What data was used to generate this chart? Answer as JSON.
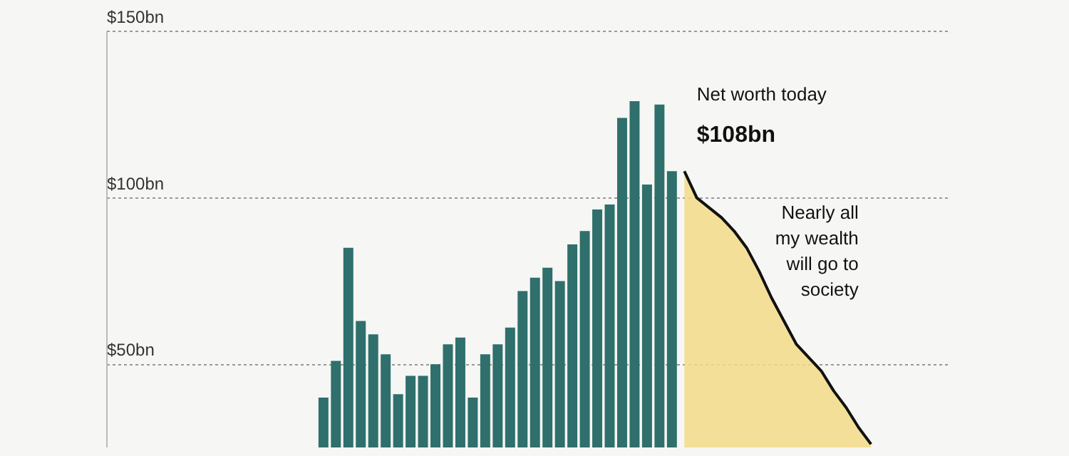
{
  "chart_data": {
    "type": "bar",
    "categories": [
      null,
      null,
      null,
      null,
      null,
      null,
      null,
      null,
      null,
      null,
      null,
      null,
      null,
      null,
      null,
      null,
      null,
      null,
      null,
      null,
      null,
      null,
      null,
      null,
      null,
      null,
      null,
      null,
      null,
      null,
      null,
      null,
      null,
      null,
      null,
      null,
      null,
      null,
      null,
      null,
      null,
      null,
      null,
      null,
      null,
      null,
      null,
      null,
      null,
      null,
      null,
      null,
      null,
      null,
      null,
      null,
      null,
      null,
      null,
      null,
      null,
      null,
      null,
      null,
      null,
      null,
      null,
      null
    ],
    "series": [
      {
        "color": "#2f6f6c",
        "values": [
          null,
          null,
          null,
          null,
          null,
          null,
          null,
          null,
          null,
          null,
          null,
          null,
          null,
          null,
          null,
          null,
          null,
          40,
          51,
          85,
          63,
          59,
          53,
          41,
          46.5,
          46.5,
          50,
          56,
          58,
          40,
          53,
          56,
          61,
          72,
          76,
          79,
          75,
          86,
          90,
          96.5,
          98,
          124,
          129,
          104,
          128,
          108,
          null,
          null,
          null,
          null,
          null,
          null,
          null,
          null,
          null,
          null,
          null,
          null,
          null,
          null,
          null,
          null,
          null,
          null,
          null,
          null,
          null,
          null
        ]
      },
      {
        "type": "area",
        "color": "#f2da86",
        "values": [
          null,
          null,
          null,
          null,
          null,
          null,
          null,
          null,
          null,
          null,
          null,
          null,
          null,
          null,
          null,
          null,
          null,
          null,
          null,
          null,
          null,
          null,
          null,
          null,
          null,
          null,
          null,
          null,
          null,
          null,
          null,
          null,
          null,
          null,
          null,
          null,
          null,
          null,
          null,
          null,
          null,
          null,
          null,
          null,
          null,
          null,
          108,
          100,
          97,
          94,
          90,
          85,
          78,
          70,
          63,
          56,
          52,
          48,
          42,
          37,
          31,
          26,
          null,
          null,
          null,
          null,
          null,
          null
        ]
      }
    ],
    "ylim": [
      25,
      150
    ],
    "yticks": [
      {
        "value": 50,
        "label": "$50bn"
      },
      {
        "value": 100,
        "label": "$100bn"
      },
      {
        "value": 150,
        "label": "$150bn"
      }
    ],
    "grid": "y",
    "tick_labels": "y",
    "annotations": [
      "Net worth today",
      "$108bn",
      "Nearly all my wealth will go to society"
    ]
  }
}
